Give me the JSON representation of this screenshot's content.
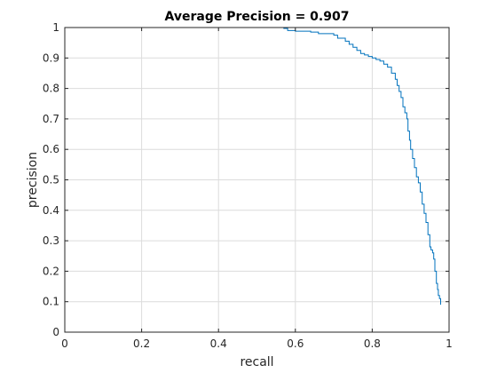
{
  "chart_data": {
    "type": "line",
    "title": "Average Precision = 0.907",
    "xlabel": "recall",
    "ylabel": "precision",
    "xlim": [
      0,
      1
    ],
    "ylim": [
      0,
      1
    ],
    "grid": true,
    "x_ticks": [
      "0",
      "0.2",
      "0.4",
      "0.6",
      "0.8",
      "1"
    ],
    "y_ticks": [
      "0",
      "0.1",
      "0.2",
      "0.3",
      "0.4",
      "0.5",
      "0.6",
      "0.7",
      "0.8",
      "0.9",
      "1"
    ],
    "colors": {
      "line": "#0072BD",
      "grid": "#dcdcdc",
      "axis": "#262626"
    },
    "series": [
      {
        "x": [
          0.0,
          0.5,
          0.57,
          0.58,
          0.6,
          0.64,
          0.66,
          0.7,
          0.71,
          0.73,
          0.74,
          0.75,
          0.76,
          0.77,
          0.78,
          0.79,
          0.8,
          0.81,
          0.82,
          0.83,
          0.84,
          0.85,
          0.86,
          0.865,
          0.87,
          0.875,
          0.88,
          0.885,
          0.89,
          0.893,
          0.897,
          0.9,
          0.905,
          0.91,
          0.915,
          0.92,
          0.925,
          0.93,
          0.935,
          0.94,
          0.945,
          0.95,
          0.953,
          0.957,
          0.96,
          0.963,
          0.967,
          0.97,
          0.972,
          0.975,
          0.978
        ],
        "y": [
          1.0,
          1.0,
          0.997,
          0.99,
          0.988,
          0.985,
          0.98,
          0.975,
          0.965,
          0.955,
          0.945,
          0.935,
          0.925,
          0.915,
          0.91,
          0.905,
          0.9,
          0.895,
          0.89,
          0.88,
          0.87,
          0.85,
          0.83,
          0.81,
          0.79,
          0.77,
          0.74,
          0.72,
          0.7,
          0.66,
          0.63,
          0.6,
          0.57,
          0.54,
          0.51,
          0.49,
          0.46,
          0.42,
          0.39,
          0.36,
          0.32,
          0.28,
          0.27,
          0.26,
          0.24,
          0.2,
          0.16,
          0.14,
          0.12,
          0.11,
          0.09
        ]
      }
    ]
  }
}
